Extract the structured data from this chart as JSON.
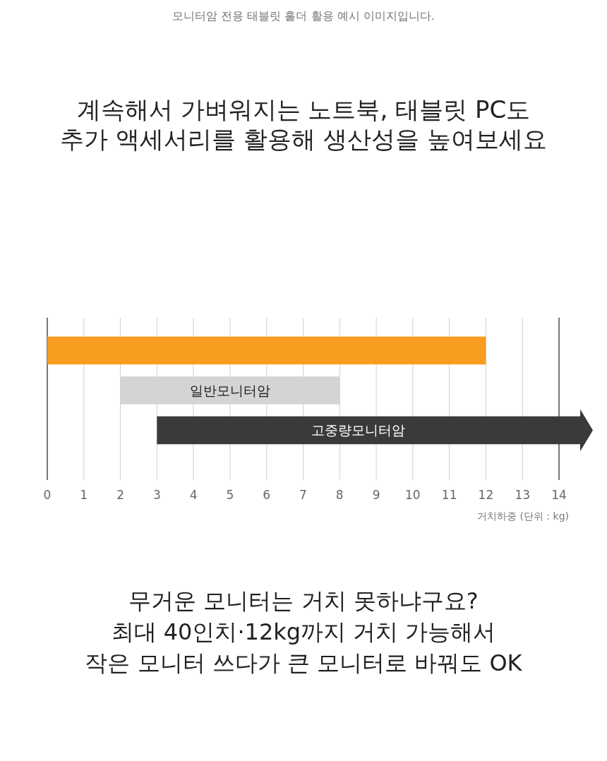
{
  "chart_data": {
    "type": "bar",
    "orientation": "horizontal",
    "title": "계속해서 가벼워지는 노트북, 태블릿 PC도\n추가 액세서리를 활용해 생산성을 높여보세요",
    "xlabel": "거치하중 (단위 : kg)",
    "categories": [
      null,
      "일반모니터암",
      "고중량모니터암"
    ],
    "base": [
      0,
      2,
      3
    ],
    "values": [
      12,
      6,
      11
    ],
    "colors": [
      "#f99d20",
      "#d4d4d4",
      "#3a3a3a"
    ],
    "xlim": [
      0,
      14
    ],
    "ref_lines": [
      {
        "axis": "x",
        "value": 0,
        "color": "#777777"
      },
      {
        "axis": "x",
        "value": 14,
        "color": "#777777"
      }
    ],
    "xticks": [
      0,
      1,
      2,
      3,
      4,
      5,
      6,
      7,
      8,
      9,
      10,
      11,
      12,
      13,
      14
    ],
    "grid": "x",
    "annotations": [
      "모니터암 전용 태블릿 홀더 활용 예시 이미지입니다.",
      "무거운 모니터는 거치 못하냐구요?\n최대 40인치·12kg까지 거치 가능해서\n작은 모니터 쓰다가 큰 모니터로 바꿔도 OK"
    ]
  }
}
